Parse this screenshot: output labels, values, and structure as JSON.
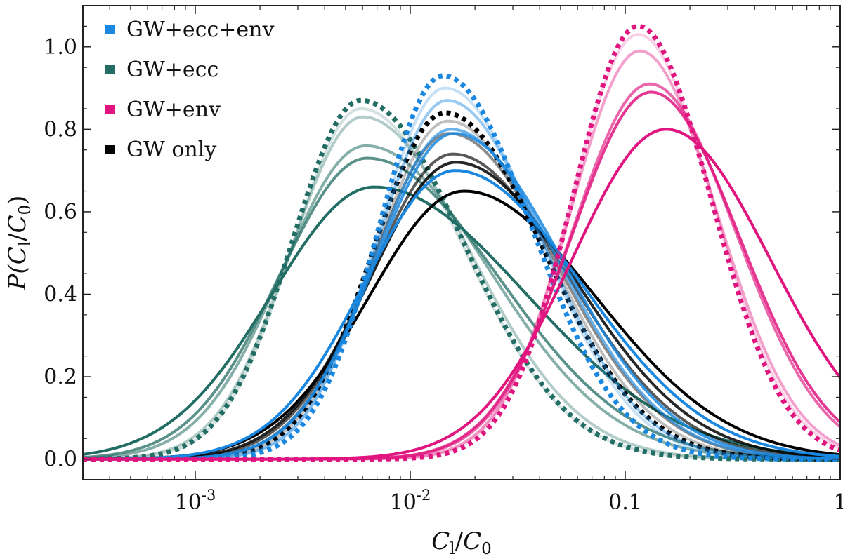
{
  "chart_data": {
    "type": "line",
    "title": "",
    "xlabel": {
      "main": "C",
      "sub1": "l",
      "slash": "/",
      "main2": "C",
      "sub2": "0"
    },
    "ylabel": {
      "prefix": "P(",
      "main": "C",
      "sub1": "l",
      "slash": "/",
      "main2": "C",
      "sub2": "0",
      "suffix": ")"
    },
    "xscale": "log",
    "xlim": [
      0.0003,
      1.0
    ],
    "ylim": [
      -0.05,
      1.1
    ],
    "x_ticks": [
      {
        "value": 0.001,
        "base": "10",
        "exp": "-3"
      },
      {
        "value": 0.01,
        "base": "10",
        "exp": "-2"
      },
      {
        "value": 0.1,
        "label": "0.1"
      },
      {
        "value": 1,
        "label": "1"
      }
    ],
    "y_ticks": [
      {
        "value": 0.0,
        "label": "0.0"
      },
      {
        "value": 0.2,
        "label": "0.2"
      },
      {
        "value": 0.4,
        "label": "0.4"
      },
      {
        "value": 0.6,
        "label": "0.6"
      },
      {
        "value": 0.8,
        "label": "0.8"
      },
      {
        "value": 1.0,
        "label": "1.0"
      }
    ],
    "legend_position": "top-left",
    "legend": [
      {
        "label": "GW+ecc+env",
        "color": "#1a88e0"
      },
      {
        "label": "GW+ecc",
        "color": "#236e64"
      },
      {
        "label": "GW+env",
        "color": "#e0157f"
      },
      {
        "label": "GW only",
        "color": "#000000"
      }
    ],
    "groups": [
      {
        "name": "GW+ecc",
        "color": "#236e64",
        "peak_x": 0.006,
        "curves": [
          {
            "peak_x": 0.0059,
            "peak_y": 0.87,
            "width": 0.39,
            "skew": 0.82,
            "opacity": 1.0,
            "dotted": true
          },
          {
            "peak_x": 0.0059,
            "peak_y": 0.85,
            "width": 0.39,
            "skew": 0.82,
            "opacity": 0.2,
            "dotted": false
          },
          {
            "peak_x": 0.006,
            "peak_y": 0.83,
            "width": 0.41,
            "skew": 0.82,
            "opacity": 0.35,
            "dotted": false
          },
          {
            "peak_x": 0.0062,
            "peak_y": 0.76,
            "width": 0.47,
            "skew": 0.82,
            "opacity": 0.55,
            "dotted": false
          },
          {
            "peak_x": 0.0063,
            "peak_y": 0.73,
            "width": 0.5,
            "skew": 0.82,
            "opacity": 0.75,
            "dotted": false
          },
          {
            "peak_x": 0.0068,
            "peak_y": 0.66,
            "width": 0.58,
            "skew": 0.82,
            "opacity": 1.0,
            "dotted": false
          }
        ]
      },
      {
        "name": "GW only",
        "color": "#000000",
        "curves": [
          {
            "peak_x": 0.0145,
            "peak_y": 0.84,
            "width": 0.39,
            "skew": 0.85,
            "opacity": 1.0,
            "dotted": true
          },
          {
            "peak_x": 0.015,
            "peak_y": 0.82,
            "width": 0.4,
            "skew": 0.85,
            "opacity": 0.25,
            "dotted": false
          },
          {
            "peak_x": 0.0152,
            "peak_y": 0.79,
            "width": 0.42,
            "skew": 0.85,
            "opacity": 0.45,
            "dotted": false
          },
          {
            "peak_x": 0.0158,
            "peak_y": 0.74,
            "width": 0.45,
            "skew": 0.85,
            "opacity": 0.65,
            "dotted": false
          },
          {
            "peak_x": 0.0163,
            "peak_y": 0.72,
            "width": 0.47,
            "skew": 0.85,
            "opacity": 0.85,
            "dotted": false
          },
          {
            "peak_x": 0.0178,
            "peak_y": 0.65,
            "width": 0.52,
            "skew": 0.85,
            "opacity": 1.0,
            "dotted": false
          }
        ]
      },
      {
        "name": "GW+ecc+env",
        "color": "#1a88e0",
        "curves": [
          {
            "peak_x": 0.0142,
            "peak_y": 0.93,
            "width": 0.35,
            "skew": 0.85,
            "opacity": 1.0,
            "dotted": true
          },
          {
            "peak_x": 0.0145,
            "peak_y": 0.9,
            "width": 0.37,
            "skew": 0.85,
            "opacity": 0.25,
            "dotted": false
          },
          {
            "peak_x": 0.0148,
            "peak_y": 0.87,
            "width": 0.38,
            "skew": 0.85,
            "opacity": 0.45,
            "dotted": false
          },
          {
            "peak_x": 0.0155,
            "peak_y": 0.8,
            "width": 0.42,
            "skew": 0.85,
            "opacity": 0.65,
            "dotted": false
          },
          {
            "peak_x": 0.016,
            "peak_y": 0.79,
            "width": 0.43,
            "skew": 0.85,
            "opacity": 0.85,
            "dotted": false
          },
          {
            "peak_x": 0.0162,
            "peak_y": 0.7,
            "width": 0.5,
            "skew": 0.85,
            "opacity": 1.0,
            "dotted": false
          }
        ]
      },
      {
        "name": "GW+env",
        "color": "#e0157f",
        "curves": [
          {
            "peak_x": 0.115,
            "peak_y": 1.05,
            "width": 0.32,
            "skew": 0.95,
            "opacity": 1.0,
            "dotted": true
          },
          {
            "peak_x": 0.115,
            "peak_y": 1.03,
            "width": 0.33,
            "skew": 0.95,
            "opacity": 0.2,
            "dotted": false
          },
          {
            "peak_x": 0.117,
            "peak_y": 0.99,
            "width": 0.34,
            "skew": 0.95,
            "opacity": 0.4,
            "dotted": false
          },
          {
            "peak_x": 0.13,
            "peak_y": 0.91,
            "width": 0.38,
            "skew": 0.95,
            "opacity": 0.65,
            "dotted": false
          },
          {
            "peak_x": 0.132,
            "peak_y": 0.89,
            "width": 0.39,
            "skew": 0.95,
            "opacity": 0.85,
            "dotted": false
          },
          {
            "peak_x": 0.155,
            "peak_y": 0.8,
            "width": 0.46,
            "skew": 0.95,
            "opacity": 1.0,
            "dotted": false
          }
        ]
      }
    ]
  }
}
